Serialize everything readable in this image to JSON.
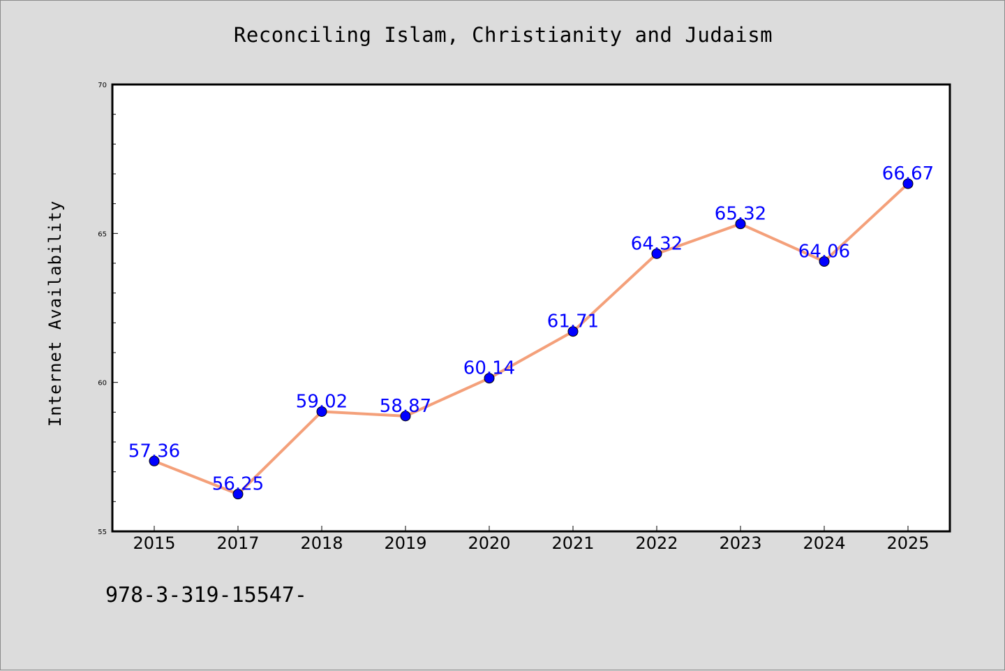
{
  "chart_data": {
    "type": "line",
    "title": "Reconciling Islam, Christianity and Judaism",
    "xlabel": "",
    "ylabel": "Internet Availability",
    "categories": [
      "2015",
      "2017",
      "2018",
      "2019",
      "2020",
      "2021",
      "2022",
      "2023",
      "2024",
      "2025"
    ],
    "series": [
      {
        "values": [
          57.36,
          56.25,
          59.02,
          58.87,
          60.14,
          61.71,
          64.32,
          65.32,
          64.06,
          66.67
        ],
        "line_color": "#f4a07a",
        "marker_color": "#0000ff",
        "label_color": "#0000ff"
      }
    ],
    "data_labels": [
      "57.36",
      "56.25",
      "59.02",
      "58.87",
      "60.14",
      "61.71",
      "64.32",
      "65.32",
      "64.06",
      "66.67"
    ],
    "ylim": [
      55,
      70
    ],
    "yticks": [
      "55",
      "60",
      "65",
      "70"
    ],
    "grid": false,
    "legend": "none"
  },
  "footer": {
    "code": "978-3-319-15547-"
  },
  "colors": {
    "background": "#dcdcdc",
    "plot_background": "#ffffff"
  }
}
